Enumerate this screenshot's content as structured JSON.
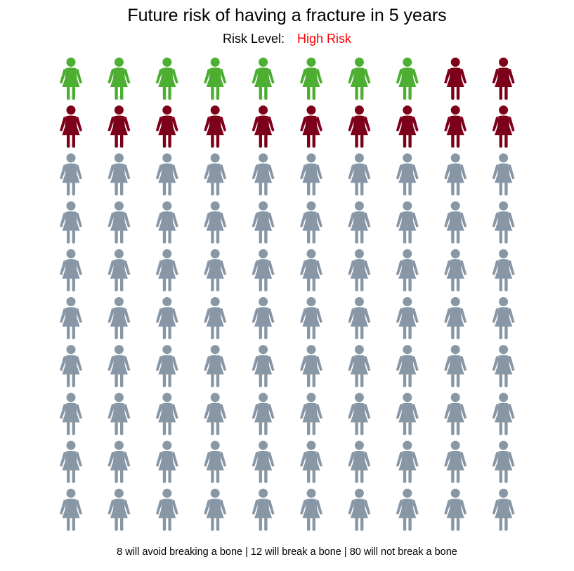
{
  "chart_data": {
    "type": "icon-array",
    "title": "Future risk of having a fracture in 5 years",
    "risk_label": "Risk Level:",
    "risk_value": "High Risk",
    "risk_value_color": "#ff0000",
    "icon": "female-figure-icon",
    "rows": 10,
    "columns": 10,
    "total": 100,
    "series": [
      {
        "count": 8,
        "color": "#4caf32"
      },
      {
        "count": 12,
        "color": "#7d0019"
      },
      {
        "count": 80,
        "color": "#8797a6"
      }
    ],
    "footer": "8 will avoid breaking a bone | 12 will break a bone | 80 will not break a bone"
  }
}
